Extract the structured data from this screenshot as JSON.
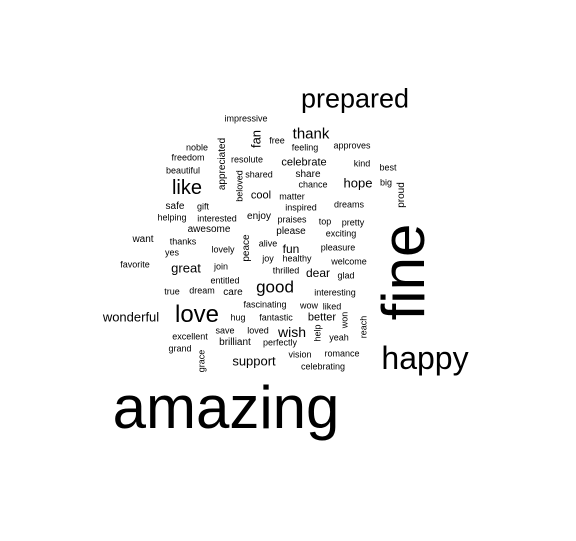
{
  "word_cloud": {
    "words": [
      {
        "text": "amazing"
      },
      {
        "text": "fine",
        "vertical": true
      },
      {
        "text": "happy"
      },
      {
        "text": "prepared"
      },
      {
        "text": "love"
      },
      {
        "text": "like"
      },
      {
        "text": "good"
      },
      {
        "text": "thank"
      },
      {
        "text": "wonderful"
      },
      {
        "text": "great"
      },
      {
        "text": "support"
      },
      {
        "text": "wish"
      },
      {
        "text": "hope"
      },
      {
        "text": "fan",
        "vertical": true
      },
      {
        "text": "celebrate"
      },
      {
        "text": "cool"
      },
      {
        "text": "share"
      },
      {
        "text": "safe"
      },
      {
        "text": "want"
      },
      {
        "text": "fun"
      },
      {
        "text": "dear"
      },
      {
        "text": "better"
      },
      {
        "text": "awesome"
      },
      {
        "text": "please"
      },
      {
        "text": "care"
      },
      {
        "text": "enjoy"
      },
      {
        "text": "peace",
        "vertical": true
      },
      {
        "text": "appreciated",
        "vertical": true
      },
      {
        "text": "proud",
        "vertical": true
      },
      {
        "text": "brilliant"
      },
      {
        "text": "impressive"
      },
      {
        "text": "noble"
      },
      {
        "text": "freedom"
      },
      {
        "text": "beautiful"
      },
      {
        "text": "resolute"
      },
      {
        "text": "free"
      },
      {
        "text": "feeling"
      },
      {
        "text": "approves"
      },
      {
        "text": "kind"
      },
      {
        "text": "best"
      },
      {
        "text": "big"
      },
      {
        "text": "shared"
      },
      {
        "text": "beloved",
        "vertical": true
      },
      {
        "text": "chance"
      },
      {
        "text": "matter"
      },
      {
        "text": "gift"
      },
      {
        "text": "inspired"
      },
      {
        "text": "dreams"
      },
      {
        "text": "helping"
      },
      {
        "text": "interested"
      },
      {
        "text": "praises"
      },
      {
        "text": "top"
      },
      {
        "text": "pretty"
      },
      {
        "text": "exciting"
      },
      {
        "text": "thanks"
      },
      {
        "text": "lovely"
      },
      {
        "text": "alive"
      },
      {
        "text": "pleasure"
      },
      {
        "text": "yes"
      },
      {
        "text": "joy"
      },
      {
        "text": "healthy"
      },
      {
        "text": "welcome"
      },
      {
        "text": "favorite"
      },
      {
        "text": "join"
      },
      {
        "text": "thrilled"
      },
      {
        "text": "glad"
      },
      {
        "text": "entitled"
      },
      {
        "text": "true"
      },
      {
        "text": "dream"
      },
      {
        "text": "interesting"
      },
      {
        "text": "fascinating"
      },
      {
        "text": "wow"
      },
      {
        "text": "liked"
      },
      {
        "text": "hug"
      },
      {
        "text": "fantastic"
      },
      {
        "text": "won",
        "vertical": true
      },
      {
        "text": "reach",
        "vertical": true
      },
      {
        "text": "save"
      },
      {
        "text": "loved"
      },
      {
        "text": "help",
        "vertical": true
      },
      {
        "text": "yeah"
      },
      {
        "text": "excellent"
      },
      {
        "text": "perfectly"
      },
      {
        "text": "grand"
      },
      {
        "text": "vision"
      },
      {
        "text": "romance"
      },
      {
        "text": "grace",
        "vertical": true
      },
      {
        "text": "celebrating"
      }
    ]
  }
}
